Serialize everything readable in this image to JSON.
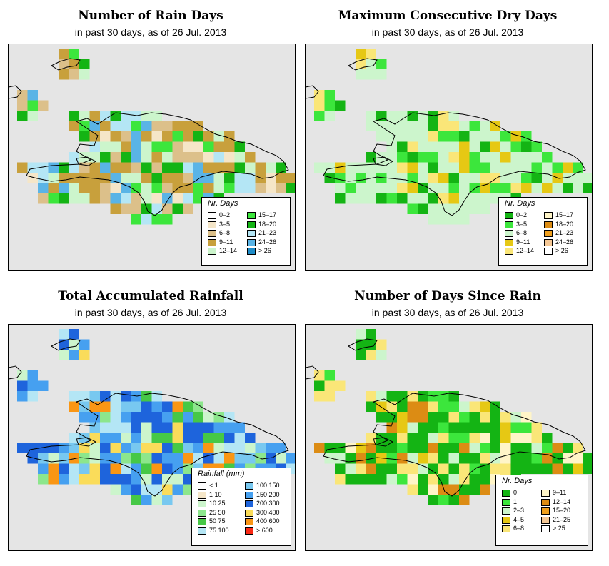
{
  "panels": [
    {
      "title": "Number of Rain Days",
      "subtitle": "in past 30 days, as of  26 Jul. 2013",
      "legend": {
        "title": "Nr. Days",
        "items": [
          {
            "label": "0–2",
            "color": "#ffffff"
          },
          {
            "label": "3–5",
            "color": "#f5e6c8"
          },
          {
            "label": "6–8",
            "color": "#dcc08a"
          },
          {
            "label": "9–11",
            "color": "#c8a03c"
          },
          {
            "label": "12–14",
            "color": "#ccf5cc"
          },
          {
            "label": "15–17",
            "color": "#3ce63c"
          },
          {
            "label": "18–20",
            "color": "#14b414"
          },
          {
            "label": "21–23",
            "color": "#b4e6f5"
          },
          {
            "label": "24–26",
            "color": "#5ab4e6"
          },
          {
            "label": "> 26",
            "color": "#1e8cc8"
          }
        ]
      }
    },
    {
      "title": "Maximum Consecutive Dry Days",
      "subtitle": "in past 30 days, as of  26 Jul. 2013",
      "legend": {
        "title": "Nr. Days",
        "items": [
          {
            "label": "0–2",
            "color": "#14b414"
          },
          {
            "label": "3–5",
            "color": "#3ce63c"
          },
          {
            "label": "6–8",
            "color": "#ccf5cc"
          },
          {
            "label": "9–11",
            "color": "#e6c814"
          },
          {
            "label": "12–14",
            "color": "#fae678"
          },
          {
            "label": "15–17",
            "color": "#fff5c8"
          },
          {
            "label": "18–20",
            "color": "#dc8c14"
          },
          {
            "label": "21–23",
            "color": "#f0a01e"
          },
          {
            "label": "24–26",
            "color": "#f5c896"
          },
          {
            "label": "> 26",
            "color": "#ffffff"
          }
        ]
      }
    },
    {
      "title": "Total Accumulated Rainfall",
      "subtitle": "in past 30 days, as of  26 Jul. 2013",
      "legend": {
        "title": "Rainfall (mm)",
        "items": [
          {
            "label": "< 1",
            "color": "#ffffff"
          },
          {
            "label": "1    10",
            "color": "#f5e6c8"
          },
          {
            "label": "10    25",
            "color": "#ccf5cc"
          },
          {
            "label": "25    50",
            "color": "#8ce68c"
          },
          {
            "label": "50    75",
            "color": "#46c846"
          },
          {
            "label": "75  100",
            "color": "#b4e6f5"
          },
          {
            "label": "100  150",
            "color": "#78c8f0"
          },
          {
            "label": "150  200",
            "color": "#46a0f0"
          },
          {
            "label": "200  300",
            "color": "#1e64dc"
          },
          {
            "label": "300  400",
            "color": "#fadc5a"
          },
          {
            "label": "400  600",
            "color": "#fa9614"
          },
          {
            "label": "> 600",
            "color": "#fa2814"
          }
        ]
      }
    },
    {
      "title": "Number of Days Since Rain",
      "subtitle": "in past 30 days, as of  26 Jul. 2013",
      "legend": {
        "title": "Nr. Days",
        "items": [
          {
            "label": "0",
            "color": "#14b414"
          },
          {
            "label": "1",
            "color": "#3ce63c"
          },
          {
            "label": "2–3",
            "color": "#ccf5cc"
          },
          {
            "label": "4–5",
            "color": "#e6c814"
          },
          {
            "label": "6–8",
            "color": "#fae678"
          },
          {
            "label": "9–11",
            "color": "#fff5c8"
          },
          {
            "label": "12–14",
            "color": "#dc8c14"
          },
          {
            "label": "15–20",
            "color": "#f0a01e"
          },
          {
            "label": "21–25",
            "color": "#f5c896"
          },
          {
            "label": "> 25",
            "color": "#ffffff"
          }
        ]
      }
    }
  ]
}
